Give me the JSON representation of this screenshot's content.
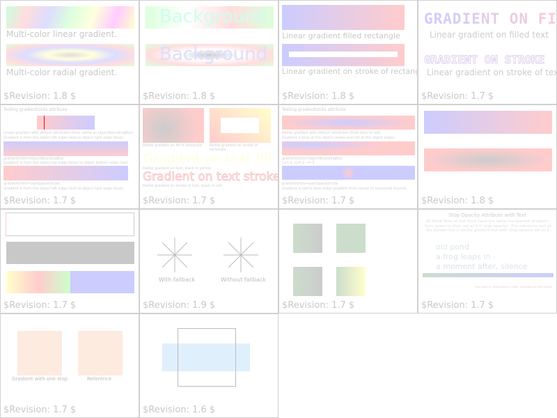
{
  "cells": [
    {
      "revision": "$Revision: 1.8 $",
      "labels": [
        "Multi-color linear gradient.",
        "Multi-color radial gradient."
      ]
    },
    {
      "revision": "$Revision: 1.8 $",
      "labels": [
        "Background",
        "Background"
      ]
    },
    {
      "revision": "$Revision: 1.8 $",
      "labels": [
        "Linear gradient filled rectangle",
        "Linear gradient on stroke of rectangle"
      ]
    },
    {
      "revision": "$Revision: 1.7 $",
      "labels": [
        "Gradient on fill",
        "Linear gradient on filled text",
        "Gradient on stroke",
        "Linear gradient on stroke of text"
      ]
    },
    {
      "revision": "$Revision: 1.7 $",
      "labels": [
        "Testing gradientUnits attribute",
        "Linear gradient with default attributes (thus, same as objectBoundingBox)",
        "Gradient is from the object left edge (red) to object right edge (blue)",
        "gradientUnits=objectBoundingBox",
        "Gradient is from the object top edge (blue) to object bottom edge (red)",
        "gradientUnits=userSpaceOnUse",
        "Gradient is from the object left edge (red) to object right edge (blue)"
      ]
    },
    {
      "revision": "$Revision: 1.7 $",
      "labels": [
        "Radial gradient on fill of rectangle",
        "Radial gradient on stroke of rectangle",
        "Gradient on text fill",
        "Radial gradient on text, black to yellow",
        "Gradient on text stroke",
        "Radial gradient on stroke of text, black to red"
      ]
    },
    {
      "revision": "$Revision: 1.7 $",
      "labels": [
        "Testing gradientUnits attribute",
        "Radial gradient with default attributes (from blue to red)",
        "Gradient is blue at the object center and red at the object edges",
        "gradientUnits=objectBoundingBox",
        "cx=.2, cy=.2, r=.5",
        "gradientUnits=userSpaceOnUse",
        "Gradient is red to blue radial gradient from center to horizontal bounds"
      ]
    },
    {
      "revision": "$Revision: 1.8 $",
      "labels": []
    },
    {
      "revision": "$Revision: 1.7 $",
      "labels": []
    },
    {
      "revision": "$Revision: 1.9 $",
      "labels": [
        "With fallback",
        "Without fallback"
      ]
    },
    {
      "revision": "$Revision: 1.7 $",
      "labels": []
    },
    {
      "revision": "$Revision: 1.7 $",
      "labels": [
        "Stop Opacity Attribute with Text",
        "All three lines of text must have the same transparent gradient - from green to blue, set at 0.4 'stop-opacity'. The reference rect at the bottom has a similar gradient but with 'stop-opacity set to 1.",
        "old pond",
        "a frog leaps in -",
        "a moment after, silence",
        "Frog Haiku by Matsuo Basho (1686), translated by Ross Hoover"
      ]
    },
    {
      "revision": "$Revision: 1.7 $",
      "labels": [
        "Gradient with one stop",
        "Reference"
      ]
    },
    {
      "revision": "$Revision: 1.6 $",
      "labels": []
    }
  ]
}
